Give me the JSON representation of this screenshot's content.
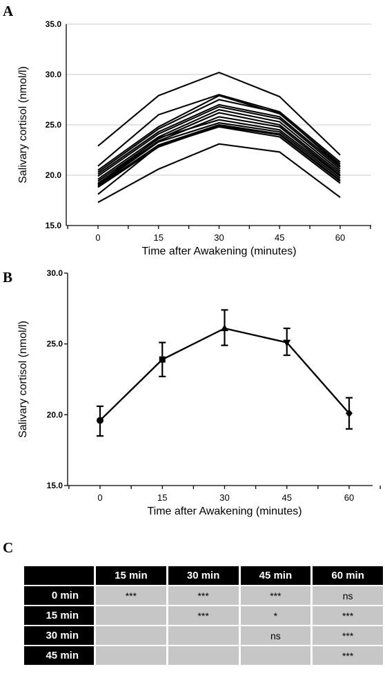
{
  "panels": {
    "a": "A",
    "b": "B",
    "c": "C"
  },
  "chart_data": [
    {
      "type": "line",
      "panel": "A",
      "x": [
        0,
        15,
        30,
        45,
        60
      ],
      "xlabel": "Time after Awakening (minutes)",
      "ylabel": "Salivary cortisol (nmol/l)",
      "ylim": [
        15.0,
        35.0
      ],
      "yticks": [
        "15.0",
        "20.0",
        "25.0",
        "30.0",
        "35.0"
      ],
      "xticks": [
        "0",
        "15",
        "30",
        "45",
        "60"
      ],
      "grid": true,
      "color": "#000000",
      "series": [
        {
          "values": [
            22.9,
            27.9,
            30.2,
            27.8,
            22.0
          ]
        },
        {
          "values": [
            20.9,
            26.0,
            28.0,
            26.3,
            21.3
          ]
        },
        {
          "values": [
            20.5,
            24.8,
            27.9,
            26.1,
            21.1
          ]
        },
        {
          "values": [
            20.3,
            24.6,
            27.5,
            26.2,
            20.9
          ]
        },
        {
          "values": [
            20.1,
            24.3,
            27.0,
            25.8,
            20.8
          ]
        },
        {
          "values": [
            19.9,
            24.1,
            26.8,
            25.6,
            20.6
          ]
        },
        {
          "values": [
            19.6,
            23.8,
            26.5,
            25.3,
            20.4
          ]
        },
        {
          "values": [
            19.4,
            23.6,
            26.2,
            25.0,
            20.2
          ]
        },
        {
          "values": [
            19.2,
            23.4,
            25.8,
            24.8,
            20.0
          ]
        },
        {
          "values": [
            19.1,
            23.7,
            25.5,
            24.5,
            19.9
          ]
        },
        {
          "values": [
            19.0,
            23.3,
            25.2,
            24.3,
            19.7
          ]
        },
        {
          "values": [
            18.9,
            23.0,
            25.0,
            24.1,
            19.5
          ]
        },
        {
          "values": [
            18.8,
            22.8,
            24.9,
            24.0,
            19.4
          ]
        },
        {
          "values": [
            18.1,
            22.9,
            24.8,
            23.8,
            19.2
          ]
        },
        {
          "values": [
            17.3,
            20.6,
            23.1,
            22.3,
            17.8
          ]
        }
      ]
    },
    {
      "type": "line",
      "panel": "B",
      "x": [
        0,
        15,
        30,
        45,
        60
      ],
      "xlabel": "Time after Awakening (minutes)",
      "ylabel": "Salivary cortisol (nmol/l)",
      "ylim": [
        15.0,
        30.0
      ],
      "yticks": [
        "15.0",
        "20.0",
        "25.0",
        "30.0"
      ],
      "xticks": [
        "0",
        "15",
        "30",
        "45",
        "60"
      ],
      "grid": false,
      "color": "#000000",
      "series": [
        {
          "values": [
            19.6,
            23.9,
            26.1,
            25.1,
            20.1
          ],
          "error_low": [
            18.5,
            22.7,
            24.9,
            24.2,
            19.0
          ],
          "error_high": [
            20.6,
            25.1,
            27.4,
            26.1,
            21.2
          ],
          "markers": [
            "circle",
            "square",
            "triangle-up",
            "triangle-down",
            "diamond"
          ]
        }
      ]
    },
    {
      "type": "table",
      "panel": "C",
      "columns": [
        "",
        "15 min",
        "30 min",
        "45 min",
        "60 min"
      ],
      "rows": [
        {
          "label": "0 min",
          "cells": [
            "***",
            "***",
            "***",
            "ns"
          ]
        },
        {
          "label": "15 min",
          "cells": [
            "",
            "***",
            "*",
            "***"
          ]
        },
        {
          "label": "30 min",
          "cells": [
            "",
            "",
            "ns",
            "***"
          ]
        },
        {
          "label": "45 min",
          "cells": [
            "",
            "",
            "",
            "***"
          ]
        }
      ]
    }
  ]
}
